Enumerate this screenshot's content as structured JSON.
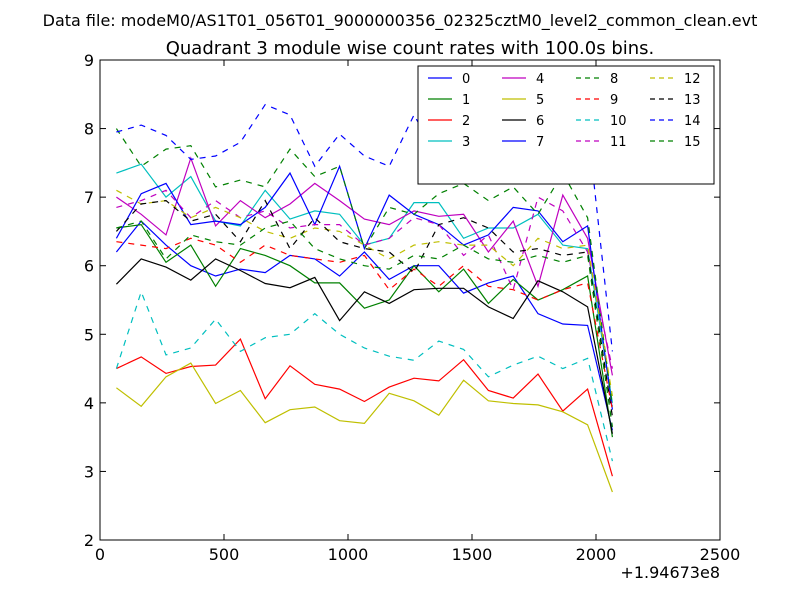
{
  "chart_data": {
    "type": "line",
    "suptitle": "Data file: modeM0/AS1T01_056T01_9000000356_02325cztM0_level2_common_clean.evt",
    "title": "Quadrant 3 module wise count rates with 100.0s bins.",
    "xlabel": "",
    "ylabel": "",
    "x_offset_label": "+1.94673e8",
    "xlim": [
      0,
      2500
    ],
    "ylim": [
      2,
      9
    ],
    "xticks": [
      0,
      500,
      1000,
      1500,
      2000,
      2500
    ],
    "yticks": [
      2,
      3,
      4,
      5,
      6,
      7,
      8,
      9
    ],
    "grid": false,
    "legend": {
      "placement": "top-right",
      "columns": 4
    },
    "x": [
      66,
      166,
      266,
      366,
      466,
      566,
      666,
      766,
      866,
      966,
      1066,
      1166,
      1266,
      1366,
      1466,
      1566,
      1666,
      1766,
      1866,
      1966,
      2066
    ],
    "series": [
      {
        "name": "0",
        "color": "#0000ff",
        "dash": "solid",
        "values": [
          6.2,
          6.65,
          6.3,
          6.0,
          5.85,
          5.95,
          5.9,
          6.15,
          6.1,
          5.85,
          6.2,
          5.8,
          6.0,
          6.0,
          5.6,
          5.75,
          5.85,
          5.3,
          5.15,
          5.13,
          3.6
        ]
      },
      {
        "name": "1",
        "color": "#008000",
        "dash": "solid",
        "values": [
          6.55,
          6.6,
          6.05,
          6.3,
          5.7,
          6.25,
          6.15,
          6.0,
          5.75,
          5.75,
          5.38,
          5.5,
          6.0,
          5.62,
          5.95,
          5.45,
          5.8,
          5.5,
          5.65,
          5.85,
          3.5
        ]
      },
      {
        "name": "2",
        "color": "#ff0000",
        "dash": "solid",
        "values": [
          4.5,
          4.67,
          4.43,
          4.53,
          4.55,
          4.93,
          4.06,
          4.54,
          4.27,
          4.2,
          4.02,
          4.23,
          4.36,
          4.32,
          4.63,
          4.18,
          4.07,
          4.42,
          3.88,
          4.2,
          2.93
        ]
      },
      {
        "name": "3",
        "color": "#00bfbf",
        "dash": "solid",
        "values": [
          7.35,
          7.48,
          7.0,
          7.3,
          6.65,
          6.58,
          7.1,
          6.68,
          6.8,
          6.75,
          6.3,
          6.4,
          6.92,
          6.92,
          6.4,
          6.55,
          6.55,
          6.75,
          6.3,
          6.25,
          4.0
        ]
      },
      {
        "name": "4",
        "color": "#bf00bf",
        "dash": "solid",
        "values": [
          7.0,
          6.75,
          6.45,
          7.57,
          6.58,
          6.95,
          6.7,
          6.9,
          7.2,
          6.95,
          6.68,
          6.6,
          6.8,
          6.72,
          6.75,
          6.2,
          6.65,
          5.7,
          7.03,
          6.4,
          4.4
        ]
      },
      {
        "name": "5",
        "color": "#bfbf00",
        "dash": "solid",
        "values": [
          4.22,
          3.95,
          4.38,
          4.58,
          3.99,
          4.18,
          3.71,
          3.9,
          3.94,
          3.74,
          3.7,
          4.14,
          4.03,
          3.82,
          4.33,
          4.03,
          3.99,
          3.97,
          3.87,
          3.68,
          2.7
        ]
      },
      {
        "name": "6",
        "color": "#000000",
        "dash": "solid",
        "values": [
          5.73,
          6.1,
          5.98,
          5.79,
          6.1,
          5.93,
          5.74,
          5.68,
          5.83,
          5.2,
          5.62,
          5.45,
          5.65,
          5.67,
          5.67,
          5.4,
          5.23,
          5.78,
          5.62,
          5.4,
          3.55
        ]
      },
      {
        "name": "7",
        "color": "#0000ff",
        "dash": "solid",
        "values": [
          6.4,
          7.05,
          7.2,
          6.6,
          6.65,
          6.6,
          6.85,
          7.35,
          6.6,
          7.45,
          6.25,
          7.03,
          6.75,
          6.6,
          6.3,
          6.45,
          6.85,
          6.8,
          6.35,
          6.58,
          3.9
        ]
      },
      {
        "name": "8",
        "color": "#008000",
        "dash": "dashed",
        "values": [
          8.0,
          7.45,
          7.7,
          7.75,
          7.15,
          7.25,
          7.15,
          7.7,
          7.3,
          7.45,
          6.25,
          6.85,
          6.75,
          7.05,
          7.2,
          6.95,
          7.15,
          6.75,
          7.35,
          6.7,
          3.95
        ]
      },
      {
        "name": "9",
        "color": "#ff0000",
        "dash": "dashed",
        "values": [
          6.35,
          6.3,
          6.25,
          6.4,
          6.3,
          6.05,
          6.3,
          6.15,
          6.1,
          6.05,
          6.15,
          5.65,
          5.95,
          5.7,
          6.0,
          5.7,
          5.65,
          5.5,
          5.65,
          5.75,
          3.9
        ]
      },
      {
        "name": "10",
        "color": "#00bfbf",
        "dash": "dashed",
        "values": [
          4.5,
          5.62,
          4.7,
          4.8,
          5.22,
          4.75,
          4.95,
          5.0,
          5.3,
          5.0,
          4.8,
          4.68,
          4.62,
          4.9,
          4.78,
          4.38,
          4.55,
          4.68,
          4.5,
          4.65,
          3.15
        ]
      },
      {
        "name": "11",
        "color": "#bf00bf",
        "dash": "dashed",
        "values": [
          6.85,
          6.95,
          7.1,
          6.7,
          6.95,
          6.7,
          6.8,
          6.55,
          6.6,
          6.6,
          6.3,
          6.4,
          6.7,
          6.6,
          6.15,
          6.45,
          5.65,
          7.0,
          6.8,
          6.2,
          4.5
        ]
      },
      {
        "name": "12",
        "color": "#bfbf00",
        "dash": "dashed",
        "values": [
          7.1,
          6.9,
          6.95,
          6.7,
          6.85,
          6.7,
          6.5,
          6.4,
          6.55,
          6.5,
          6.3,
          6.1,
          6.3,
          6.35,
          6.3,
          6.3,
          6.0,
          6.4,
          6.25,
          6.3,
          4.1
        ]
      },
      {
        "name": "13",
        "color": "#000000",
        "dash": "dashed",
        "values": [
          6.5,
          6.9,
          6.95,
          6.65,
          6.75,
          6.35,
          6.95,
          6.25,
          6.7,
          6.35,
          6.25,
          6.2,
          5.9,
          6.6,
          6.7,
          6.55,
          6.2,
          6.25,
          6.15,
          6.2,
          3.8
        ]
      },
      {
        "name": "14",
        "color": "#0000ff",
        "dash": "dashed",
        "values": [
          7.95,
          8.05,
          7.9,
          7.55,
          7.6,
          7.8,
          8.35,
          8.2,
          7.45,
          7.92,
          7.6,
          7.45,
          8.2,
          7.55,
          7.45,
          7.8,
          7.65,
          7.62,
          7.5,
          8.05,
          4.75
        ]
      },
      {
        "name": "15",
        "color": "#008000",
        "dash": "dashed",
        "values": [
          6.55,
          6.65,
          6.1,
          6.45,
          6.35,
          6.3,
          6.55,
          6.65,
          6.25,
          6.1,
          6.0,
          5.95,
          6.15,
          6.1,
          6.3,
          6.1,
          6.05,
          6.15,
          6.05,
          6.15,
          3.65
        ]
      }
    ]
  }
}
